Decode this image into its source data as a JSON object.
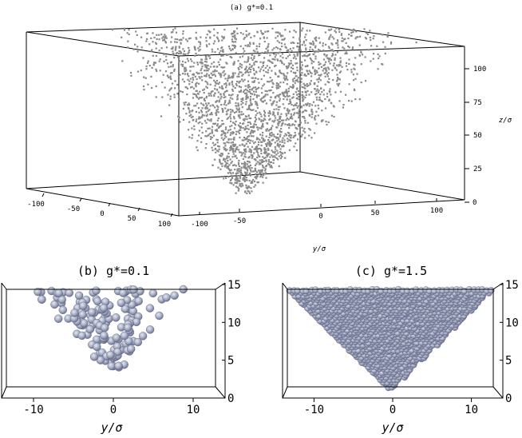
{
  "chart_data": [
    {
      "id": "a",
      "type": "scatter",
      "title": "(a) g*=0.1",
      "xlabel": "",
      "ylabel": "y/σ",
      "zlabel": "z/σ",
      "x_ticks": [
        "-100",
        "-50",
        "0",
        "50",
        "100"
      ],
      "y_ticks": [
        "-100",
        "-50",
        "0",
        "50",
        "100"
      ],
      "z_ticks": [
        "0",
        "25",
        "50",
        "75",
        "100"
      ],
      "x_range": [
        -120,
        120
      ],
      "y_range": [
        -120,
        120
      ],
      "z_range": [
        0,
        120
      ],
      "shape": "inverted cone of particles, apex at z≈0, widening to |y|≈120 at z≈120",
      "point_color": "#8a8a8a",
      "grid": false
    },
    {
      "id": "b",
      "type": "scatter",
      "title": "(b) g*=0.1",
      "xlabel": "y/σ",
      "ylabel": "",
      "x_ticks": [
        "-10",
        "0",
        "10"
      ],
      "y_ticks": [
        "0",
        "5",
        "10",
        "15"
      ],
      "x_range": [
        -14,
        14
      ],
      "y_range": [
        0,
        15
      ],
      "shape": "sparse V-shaped funnel of spheres, lowest sphere near z≈2.5",
      "point_color": "#a8a8b8",
      "grid": false
    },
    {
      "id": "c",
      "type": "scatter",
      "title": "(c) g*=1.5",
      "xlabel": "y/σ",
      "ylabel": "",
      "x_ticks": [
        "-10",
        "0",
        "10"
      ],
      "y_ticks": [
        "0",
        "5",
        "10",
        "15"
      ],
      "x_range": [
        -14,
        14
      ],
      "y_range": [
        0,
        15
      ],
      "shape": "densely packed inverted triangle of spheres with apex at y=0, z=0",
      "point_color": "#b0b4c8",
      "grid": false
    }
  ]
}
